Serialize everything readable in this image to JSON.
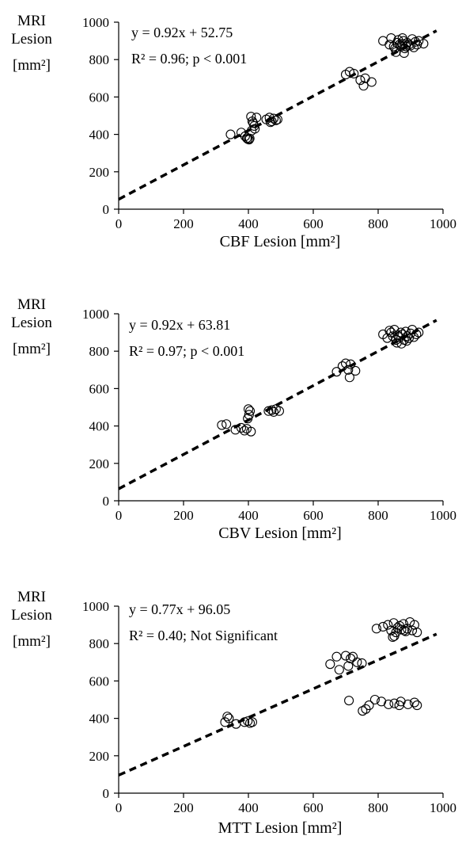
{
  "chart_data": [
    {
      "type": "scatter",
      "xlabel": "CBF Lesion [mm²]",
      "ylabel": [
        "MRI",
        "Lesion",
        "[mm²]"
      ],
      "equation": "y = 0.92x + 52.75",
      "stats": "R² = 0.96; p < 0.001",
      "xlim": [
        0,
        1000
      ],
      "ylim": [
        0,
        1000
      ],
      "xticks": [
        "0",
        "200",
        "400",
        "600",
        "800",
        "1000"
      ],
      "yticks": [
        "0",
        "200",
        "400",
        "600",
        "800",
        "1000"
      ],
      "grid": false,
      "fit": {
        "slope": 0.92,
        "intercept": 52.75,
        "style": "dashed"
      },
      "points": {
        "x": [
          345,
          378,
          390,
          395,
          398,
          402,
          404,
          408,
          412,
          418,
          420,
          415,
          425,
          410,
          455,
          465,
          472,
          478,
          485,
          490,
          468,
          700,
          712,
          725,
          745,
          755,
          760,
          780,
          815,
          835,
          840,
          848,
          852,
          858,
          862,
          866,
          870,
          874,
          878,
          882,
          886,
          890,
          895,
          900,
          905,
          910,
          915,
          920,
          925,
          940,
          855,
          880,
          875
        ],
        "y": [
          400,
          410,
          390,
          380,
          375,
          372,
          378,
          495,
          470,
          445,
          430,
          460,
          490,
          420,
          480,
          490,
          470,
          485,
          475,
          480,
          465,
          720,
          735,
          725,
          690,
          660,
          700,
          680,
          900,
          880,
          915,
          870,
          860,
          890,
          905,
          880,
          870,
          885,
          900,
          860,
          870,
          890,
          880,
          875,
          910,
          865,
          895,
          880,
          900,
          885,
          840,
          835,
          915
        ]
      }
    },
    {
      "type": "scatter",
      "xlabel": "CBV Lesion [mm²]",
      "ylabel": [
        "MRI",
        "Lesion",
        "[mm²]"
      ],
      "equation": "y = 0.92x + 63.81",
      "stats": "R² = 0.97; p < 0.001",
      "xlim": [
        0,
        1000
      ],
      "ylim": [
        0,
        1000
      ],
      "xticks": [
        "0",
        "200",
        "400",
        "600",
        "800",
        "1000"
      ],
      "yticks": [
        "0",
        "200",
        "400",
        "600",
        "800",
        "1000"
      ],
      "grid": false,
      "fit": {
        "slope": 0.92,
        "intercept": 63.81,
        "style": "dashed"
      },
      "points": {
        "x": [
          318,
          332,
          360,
          378,
          388,
          395,
          400,
          405,
          398,
          408,
          402,
          462,
          472,
          478,
          485,
          495,
          672,
          690,
          700,
          708,
          712,
          715,
          730,
          815,
          828,
          835,
          840,
          845,
          850,
          855,
          860,
          865,
          870,
          875,
          880,
          885,
          890,
          895,
          900,
          905,
          910,
          918,
          925,
          858,
          872,
          888
        ],
        "y": [
          405,
          410,
          380,
          390,
          375,
          385,
          490,
          480,
          440,
          370,
          460,
          480,
          485,
          475,
          490,
          480,
          690,
          720,
          735,
          700,
          660,
          730,
          695,
          890,
          870,
          910,
          900,
          880,
          915,
          860,
          885,
          875,
          900,
          890,
          860,
          905,
          880,
          870,
          895,
          915,
          875,
          890,
          900,
          845,
          840,
          855
        ]
      }
    },
    {
      "type": "scatter",
      "xlabel": "MTT Lesion [mm²]",
      "ylabel": [
        "MRI",
        "Lesion",
        "[mm²]"
      ],
      "equation": "y = 0.77x + 96.05",
      "stats": "R² = 0.40; Not Significant",
      "xlim": [
        0,
        1000
      ],
      "ylim": [
        0,
        1000
      ],
      "xticks": [
        "0",
        "200",
        "400",
        "600",
        "800",
        "1000"
      ],
      "yticks": [
        "0",
        "200",
        "400",
        "600",
        "800",
        "1000"
      ],
      "grid": false,
      "fit": {
        "slope": 0.77,
        "intercept": 96.05,
        "style": "dashed"
      },
      "points": {
        "x": [
          328,
          335,
          340,
          362,
          388,
          398,
          405,
          412,
          652,
          672,
          680,
          700,
          708,
          715,
          722,
          735,
          750,
          710,
          752,
          762,
          772,
          790,
          810,
          832,
          850,
          870,
          892,
          912,
          920,
          865,
          795,
          815,
          830,
          840,
          848,
          855,
          860,
          866,
          872,
          878,
          885,
          890,
          898,
          905,
          912,
          920,
          850,
          880,
          845
        ],
        "y": [
          380,
          410,
          400,
          370,
          380,
          385,
          375,
          380,
          690,
          730,
          660,
          735,
          680,
          720,
          730,
          700,
          695,
          495,
          440,
          450,
          470,
          500,
          490,
          475,
          480,
          490,
          475,
          485,
          470,
          470,
          880,
          890,
          900,
          870,
          910,
          860,
          885,
          895,
          875,
          905,
          865,
          880,
          915,
          870,
          900,
          860,
          840,
          870,
          835
        ]
      }
    }
  ]
}
